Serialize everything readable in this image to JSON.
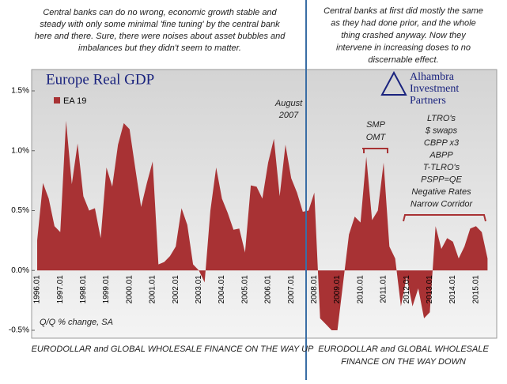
{
  "notes": {
    "top_left": [
      "Central banks can do no wrong, economic growth stable and",
      "steady with only some minimal 'fine tuning' by the central bank",
      "here and there.  Sure, there were noises about asset bubbles and",
      "imbalances but they didn't seem to matter."
    ],
    "top_right": [
      "Central banks at first did mostly the same",
      "as they had done prior, and the whole",
      "thing crashed anyway.  Now they",
      "intervene in increasing doses to no",
      "discernable effect."
    ],
    "bottom_left": [
      "EURODOLLAR and GLOBAL WHOLESALE FINANCE ON THE WAY UP"
    ],
    "bottom_right": [
      "EURODOLLAR and GLOBAL WHOLESALE",
      "FINANCE ON THE WAY DOWN"
    ]
  },
  "logo": [
    "Alhambra",
    "Investment",
    "Partners"
  ],
  "chart_data": {
    "type": "area",
    "title": "Europe Real GDP",
    "axis_note": "Q/Q % change, SA",
    "annotations": {
      "august": [
        "August",
        "2007"
      ],
      "smp": [
        "SMP",
        "OMT"
      ],
      "ltro": [
        "LTRO's",
        "$ swaps",
        "CBPP x3",
        "ABPP",
        "T-TLRO's",
        "PSPP=QE",
        "Negative Rates",
        "Narrow Corridor"
      ]
    },
    "categories": [
      "1996.01",
      null,
      null,
      null,
      "1997.01",
      null,
      null,
      null,
      "1998.01",
      null,
      null,
      null,
      "1999.01",
      null,
      null,
      null,
      "2000.01",
      null,
      null,
      null,
      "2001.01",
      null,
      null,
      null,
      "2002.01",
      null,
      null,
      null,
      "2003.01",
      null,
      null,
      null,
      "2004.01",
      null,
      null,
      null,
      "2005.01",
      null,
      null,
      null,
      "2006.01",
      null,
      null,
      null,
      "2007.01",
      null,
      null,
      null,
      "2008.01",
      null,
      null,
      null,
      "2009.01",
      null,
      null,
      null,
      "2010.01",
      null,
      null,
      null,
      "2011.01",
      null,
      null,
      null,
      "2012.01",
      null,
      null,
      null,
      "2013.01",
      null,
      null,
      null,
      "2014.01",
      null,
      null,
      null,
      "2015.01",
      null,
      null
    ],
    "series": [
      {
        "name": "EA 19",
        "color": "#a83234",
        "values": [
          0.25,
          0.73,
          0.6,
          0.37,
          0.32,
          1.25,
          0.72,
          1.06,
          0.62,
          0.5,
          0.52,
          0.27,
          0.86,
          0.7,
          1.05,
          1.23,
          1.18,
          0.85,
          0.53,
          0.73,
          0.91,
          0.05,
          0.07,
          0.12,
          0.2,
          0.52,
          0.38,
          0.05,
          0.0,
          -0.1,
          0.5,
          0.86,
          0.6,
          0.48,
          0.34,
          0.35,
          0.15,
          0.71,
          0.7,
          0.6,
          0.9,
          1.1,
          0.62,
          1.05,
          0.77,
          0.65,
          0.49,
          0.5,
          0.65,
          -0.4,
          -0.45,
          -0.5,
          -0.5,
          -0.1,
          0.3,
          0.45,
          0.4,
          0.95,
          0.42,
          0.5,
          0.9,
          0.2,
          0.1,
          -0.3,
          -0.05,
          -0.3,
          -0.15,
          -0.4,
          -0.35,
          0.37,
          0.18,
          0.27,
          0.24,
          0.1,
          0.2,
          0.35,
          0.37,
          0.32,
          0.1
        ]
      }
    ],
    "ylim": [
      -0.5,
      1.5
    ],
    "yticks": [
      {
        "value": -0.5,
        "label": "-0.5%"
      },
      {
        "value": 0,
        "label": "0.0%"
      },
      {
        "value": 0.5,
        "label": "0.5%"
      },
      {
        "value": 1.0,
        "label": "1.0%"
      },
      {
        "value": 1.5,
        "label": "1.5%"
      }
    ],
    "grid": false
  }
}
